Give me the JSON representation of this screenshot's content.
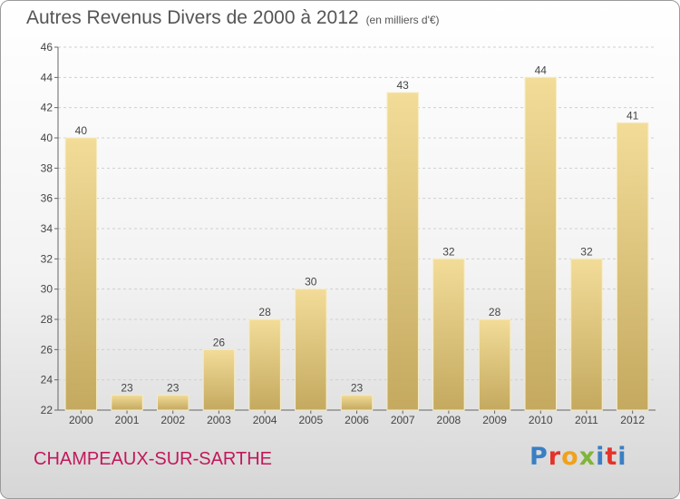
{
  "header": {
    "title": "Autres Revenus Divers de 2000 à 2012",
    "subtitle": "(en milliers d'€)"
  },
  "footer": {
    "commune": "CHAMPEAUX-SUR-SARTHE",
    "logo_text": "Proxiti"
  },
  "colors": {
    "bar_light": "#f2dc98",
    "bar_dark": "#c4a95f",
    "grid": "#d0d0d0",
    "commune_text": "#c2185b"
  },
  "chart_data": {
    "type": "bar",
    "title": "Autres Revenus Divers de 2000 à 2012",
    "subtitle": "(en milliers d'€)",
    "categories": [
      "2000",
      "2001",
      "2002",
      "2003",
      "2004",
      "2005",
      "2006",
      "2007",
      "2008",
      "2009",
      "2010",
      "2011",
      "2012"
    ],
    "values": [
      40,
      23,
      23,
      26,
      28,
      30,
      23,
      43,
      32,
      28,
      44,
      32,
      41
    ],
    "ylim": [
      22,
      46
    ],
    "yticks": [
      22,
      24,
      26,
      28,
      30,
      32,
      34,
      36,
      38,
      40,
      42,
      44,
      46
    ],
    "grid": true,
    "legend": "none",
    "xlabel": "",
    "ylabel": ""
  }
}
